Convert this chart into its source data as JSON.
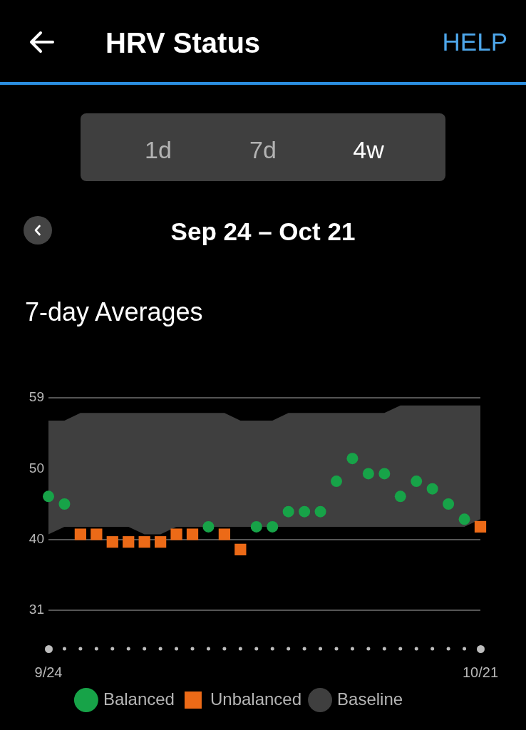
{
  "chart_data": {
    "type": "scatter",
    "title": "HRV Status",
    "subtitle": "Sep 24 – Oct 21",
    "annotations": [
      "HELP",
      "1d",
      "7d",
      "4w",
      "7-day Averages"
    ],
    "categories": [
      "9/24",
      null,
      null,
      null,
      null,
      null,
      null,
      null,
      null,
      null,
      null,
      null,
      null,
      null,
      null,
      null,
      null,
      null,
      null,
      null,
      null,
      null,
      null,
      null,
      null,
      null,
      null,
      "10/21"
    ],
    "series": [
      {
        "name": "Balanced",
        "marker": "circle",
        "color": "#17a348",
        "values": [
          46,
          45,
          null,
          null,
          null,
          null,
          null,
          null,
          null,
          null,
          42,
          null,
          null,
          42,
          42,
          44,
          44,
          44,
          48,
          51,
          49,
          49,
          46,
          48,
          47,
          45,
          43,
          null
        ]
      },
      {
        "name": "Unbalanced",
        "marker": "square",
        "color": "#ec6a17",
        "values": [
          null,
          null,
          41,
          41,
          40,
          40,
          40,
          40,
          41,
          41,
          null,
          41,
          39,
          null,
          null,
          null,
          null,
          null,
          null,
          null,
          null,
          null,
          null,
          null,
          null,
          null,
          null,
          42
        ]
      },
      {
        "name": "Baseline",
        "type": "area",
        "color": "#3f3f3f",
        "values": [
          null,
          null,
          null,
          null,
          null,
          null,
          null,
          null,
          null,
          null,
          null,
          null,
          null,
          null,
          null,
          null,
          null,
          null,
          null,
          null,
          null,
          null,
          null,
          null,
          null,
          null,
          null,
          null
        ],
        "lower": [
          41,
          42,
          42,
          42,
          42,
          42,
          41,
          41,
          42,
          42,
          42,
          42,
          42,
          42,
          42,
          42,
          42,
          42,
          42,
          42,
          42,
          42,
          42,
          42,
          42,
          42,
          42,
          43
        ],
        "upper": [
          56,
          56,
          57,
          57,
          57,
          57,
          57,
          57,
          57,
          57,
          57,
          57,
          56,
          56,
          56,
          57,
          57,
          57,
          57,
          57,
          57,
          57,
          58,
          58,
          58,
          58,
          58,
          58
        ]
      }
    ],
    "ylim": [
      31,
      59
    ],
    "yticks": [
      31,
      {
        "value": 40.33,
        "label": "40"
      },
      {
        "value": 49.67,
        "label": "50"
      },
      59
    ],
    "grid": "y",
    "legend": "bottom"
  }
}
